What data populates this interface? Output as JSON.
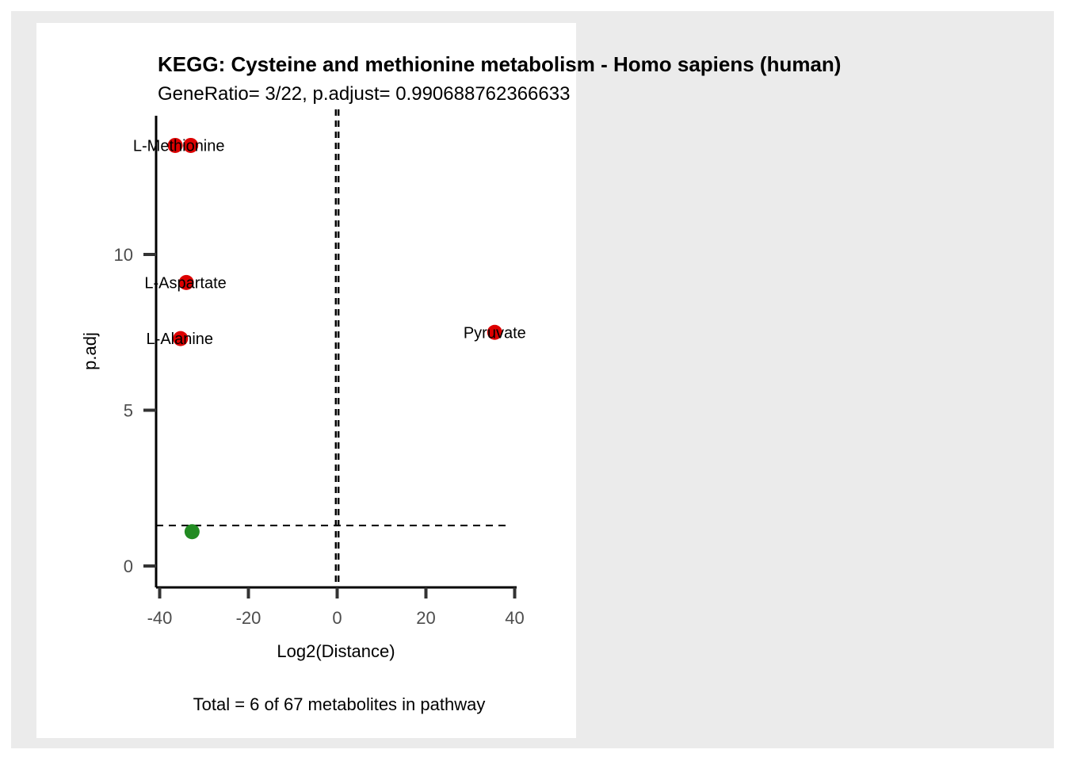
{
  "chart_data": {
    "type": "scatter",
    "title": "KEGG: Cysteine and methionine metabolism - Homo sapiens (human)",
    "subtitle": "GeneRatio= 3/22, p.adjust= 0.990688762366633",
    "xlabel": "Log2(Distance)",
    "ylabel": "p.adj",
    "caption": "Total = 6 of 67 metabolites in pathway",
    "xlim": [
      -40,
      40
    ],
    "ylim": [
      0,
      14
    ],
    "x_ticks": [
      -40,
      -20,
      0,
      20,
      40
    ],
    "x_tick_labels": [
      "-40",
      "-20",
      "0",
      "20",
      "40"
    ],
    "y_ticks": [
      0,
      5,
      10
    ],
    "y_tick_labels": [
      "0",
      "5",
      "10"
    ],
    "reference_lines": {
      "vertical_x": [
        -0.3,
        0.3
      ],
      "horizontal_y": 1.3
    },
    "grid": false,
    "points": [
      {
        "x": -36.5,
        "y": 13.5,
        "color": "#dd0000",
        "label": ""
      },
      {
        "x": -33.0,
        "y": 13.5,
        "color": "#dd0000",
        "label": "L-Methionine"
      },
      {
        "x": -34.0,
        "y": 9.1,
        "color": "#dd0000",
        "label": "L-Aspartate"
      },
      {
        "x": -35.3,
        "y": 7.3,
        "color": "#dd0000",
        "label": "L-Alanine"
      },
      {
        "x": 35.5,
        "y": 7.5,
        "color": "#dd0000",
        "label": "Pyruvate"
      },
      {
        "x": -32.7,
        "y": 1.1,
        "color": "#228b22",
        "label": ""
      }
    ]
  },
  "colors": {
    "outer_background": "#ebebeb",
    "panel_background": "#ffffff",
    "significant_point": "#dd0000",
    "nonsignificant_point": "#228b22"
  }
}
